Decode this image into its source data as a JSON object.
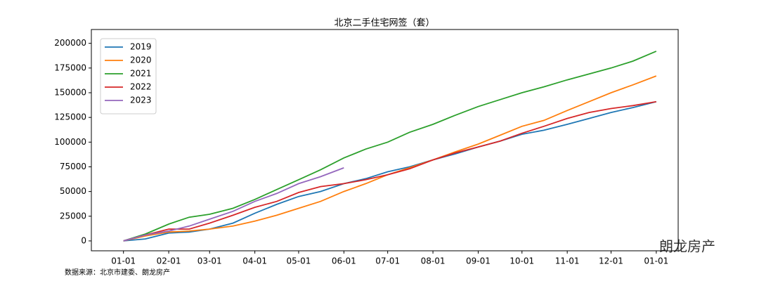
{
  "chart_data": {
    "type": "line",
    "title": "北京二手住宅网签（套）",
    "x": [
      0,
      15,
      31,
      45,
      59,
      75,
      90,
      105,
      120,
      135,
      151,
      166,
      181,
      196,
      212,
      227,
      243,
      258,
      273,
      288,
      304,
      319,
      334,
      349,
      365
    ],
    "series": [
      {
        "name": "2019",
        "color": "#1f77b4",
        "values": [
          0,
          2000,
          8000,
          9000,
          12000,
          18000,
          28000,
          37000,
          45000,
          50000,
          58000,
          63000,
          70000,
          75000,
          82000,
          88000,
          95000,
          101000,
          108000,
          112000,
          118000,
          124000,
          130000,
          135000,
          141000
        ]
      },
      {
        "name": "2020",
        "color": "#ff7f0e",
        "values": [
          0,
          5000,
          9000,
          10000,
          12000,
          15000,
          20000,
          26000,
          33000,
          40000,
          50000,
          58000,
          67000,
          74000,
          82000,
          90000,
          98000,
          107000,
          116000,
          122000,
          132000,
          141000,
          150000,
          158000,
          167000
        ]
      },
      {
        "name": "2021",
        "color": "#2ca02c",
        "values": [
          0,
          7000,
          17000,
          24000,
          27000,
          33000,
          42000,
          52000,
          62000,
          72000,
          84000,
          93000,
          100000,
          110000,
          118000,
          127000,
          136000,
          143000,
          150000,
          156000,
          163000,
          169000,
          175000,
          182000,
          192000
        ]
      },
      {
        "name": "2022",
        "color": "#d62728",
        "values": [
          0,
          6000,
          12000,
          12000,
          18000,
          26000,
          34000,
          40000,
          49000,
          55000,
          58000,
          62000,
          67000,
          73000,
          82000,
          89000,
          95000,
          101000,
          109000,
          116000,
          124000,
          130000,
          134000,
          137000,
          141000
        ]
      },
      {
        "name": "2023",
        "color": "#9467bd",
        "values": [
          0,
          6000,
          10000,
          15000,
          22000,
          30000,
          40000,
          48000,
          58000,
          65000,
          74000,
          null,
          null,
          null,
          null,
          null,
          null,
          null,
          null,
          null,
          null,
          null,
          null,
          null,
          null
        ]
      }
    ],
    "xlim": [
      -22,
      380
    ],
    "xticks": [
      {
        "value": 0,
        "label": "01-01"
      },
      {
        "value": 31,
        "label": "02-01"
      },
      {
        "value": 59,
        "label": "03-01"
      },
      {
        "value": 90,
        "label": "04-01"
      },
      {
        "value": 120,
        "label": "05-01"
      },
      {
        "value": 151,
        "label": "06-01"
      },
      {
        "value": 181,
        "label": "07-01"
      },
      {
        "value": 212,
        "label": "08-01"
      },
      {
        "value": 243,
        "label": "09-01"
      },
      {
        "value": 273,
        "label": "10-01"
      },
      {
        "value": 304,
        "label": "11-01"
      },
      {
        "value": 334,
        "label": "12-01"
      },
      {
        "value": 365,
        "label": "01-01"
      }
    ],
    "ylim": [
      -10000,
      214000
    ],
    "yticks": [
      0,
      25000,
      50000,
      75000,
      100000,
      125000,
      150000,
      175000,
      200000
    ],
    "legend": "upper left",
    "source": "数据来源：北京市建委、朗龙房产",
    "watermark": "朗龙房产"
  }
}
